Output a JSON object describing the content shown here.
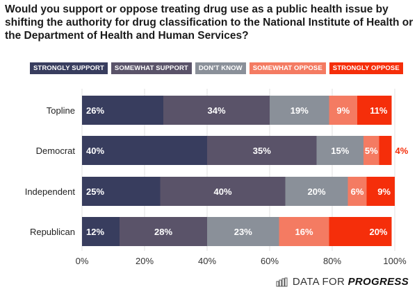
{
  "chart_data": {
    "type": "bar",
    "orientation": "horizontal",
    "stacked": true,
    "title": "Would you support or oppose treating drug use as a public health issue by shifting the authority for drug classification to the National Institute of Health or the Department of Health and Human Services?",
    "xlabel": "",
    "ylabel": "",
    "xlim": [
      0,
      100
    ],
    "x_ticks": [
      "0%",
      "20%",
      "40%",
      "60%",
      "80%",
      "100%"
    ],
    "grid": true,
    "legend_position": "top",
    "categories": [
      "Topline",
      "Democrat",
      "Independent",
      "Republican"
    ],
    "series": [
      {
        "name": "STRONGLY SUPPORT",
        "color": "#383d5e",
        "values": [
          26,
          40,
          25,
          12
        ]
      },
      {
        "name": "SOMEWHAT SUPPORT",
        "color": "#5a5369",
        "values": [
          34,
          35,
          40,
          28
        ]
      },
      {
        "name": "DON'T KNOW",
        "color": "#8a9099",
        "values": [
          19,
          15,
          20,
          23
        ]
      },
      {
        "name": "SOMEWHAT OPPOSE",
        "color": "#f47b62",
        "values": [
          9,
          5,
          6,
          16
        ]
      },
      {
        "name": "STRONGLY OPPOSE",
        "color": "#f52e0a",
        "values": [
          11,
          4,
          9,
          20
        ]
      }
    ]
  },
  "branding": {
    "text_regular": "DATA FOR",
    "text_bold": "PROGRESS",
    "icon": "bar-chart-logo-icon"
  }
}
